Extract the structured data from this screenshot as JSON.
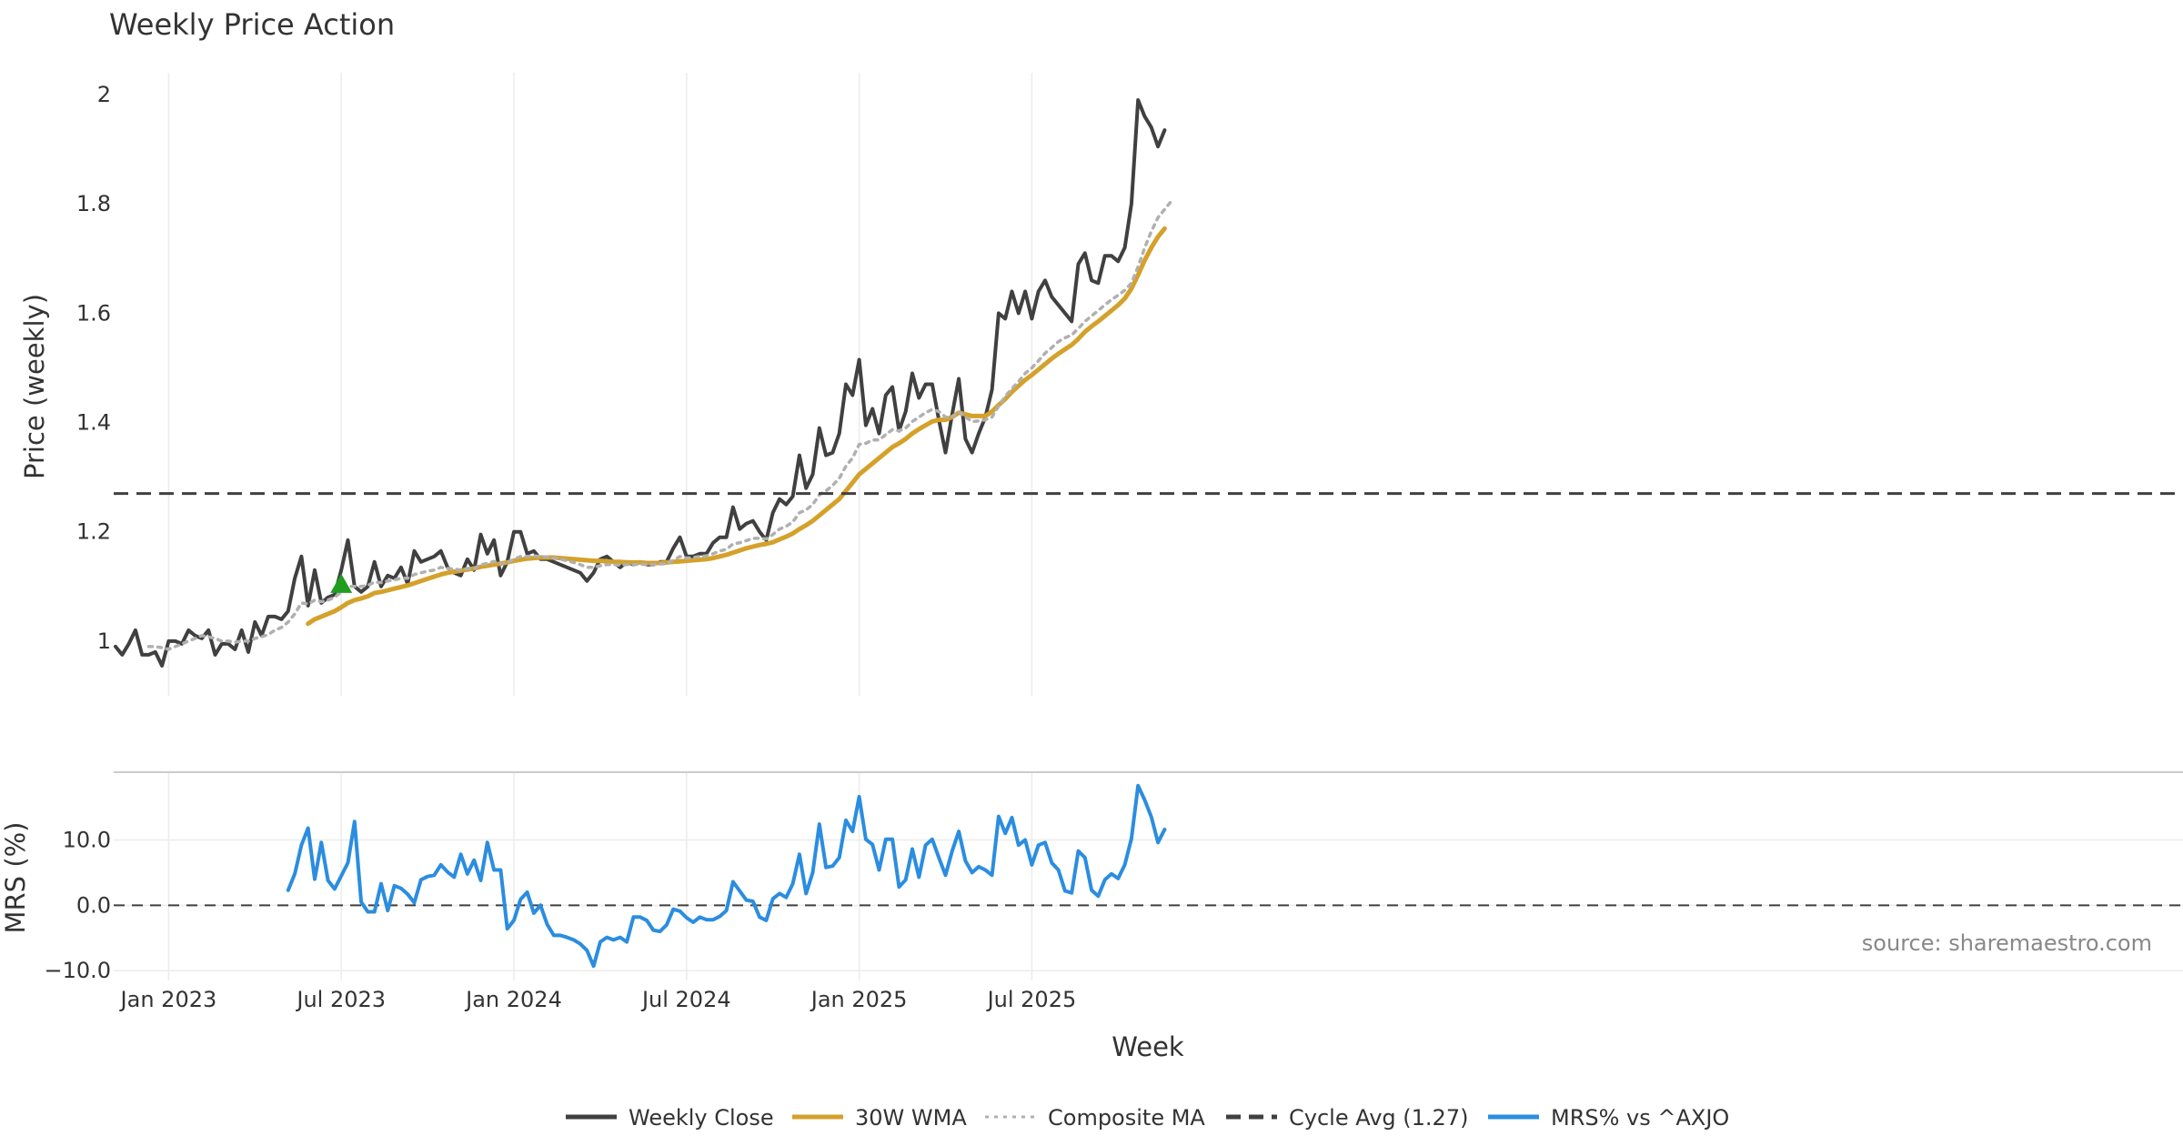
{
  "chart_data": [
    {
      "type": "line",
      "title": "Weekly Price Action",
      "ylabel": "Price (weekly)",
      "ylim": [
        0.9,
        2.04
      ],
      "yticks": [
        1,
        1.2,
        1.4,
        1.6,
        1.8,
        2
      ],
      "ytick_labels": [
        "1",
        "1.2",
        "1.4",
        "1.6",
        "1.8",
        "2"
      ],
      "grid": true,
      "x_start": "2022-11-07",
      "x_step_days": 7,
      "series": [
        {
          "name": "Weekly Close",
          "color": "#404040",
          "values": [
            0.99,
            0.975,
            0.995,
            1.02,
            0.975,
            0.975,
            0.98,
            0.955,
            1.0,
            1.0,
            0.995,
            1.02,
            1.01,
            1.005,
            1.02,
            0.975,
            0.995,
            0.995,
            0.985,
            1.02,
            0.98,
            1.035,
            1.01,
            1.045,
            1.045,
            1.04,
            1.055,
            1.115,
            1.155,
            1.065,
            1.13,
            1.07,
            1.08,
            1.085,
            1.13,
            1.185,
            1.1,
            1.09,
            1.1,
            1.145,
            1.1,
            1.12,
            1.115,
            1.135,
            1.105,
            1.165,
            1.145,
            1.15,
            1.155,
            1.165,
            1.135,
            1.125,
            1.12,
            1.15,
            1.13,
            1.195,
            1.16,
            1.185,
            1.12,
            1.145,
            1.2,
            1.2,
            1.16,
            1.165,
            1.15,
            1.15,
            1.145,
            1.14,
            1.135,
            1.13,
            1.125,
            1.11,
            1.125,
            1.15,
            1.155,
            1.145,
            1.135,
            1.145,
            1.14,
            1.145,
            1.14,
            1.14,
            1.145,
            1.145,
            1.17,
            1.19,
            1.155,
            1.155,
            1.16,
            1.16,
            1.18,
            1.19,
            1.19,
            1.245,
            1.205,
            1.215,
            1.22,
            1.2,
            1.185,
            1.235,
            1.26,
            1.25,
            1.265,
            1.34,
            1.28,
            1.305,
            1.39,
            1.34,
            1.345,
            1.38,
            1.47,
            1.45,
            1.515,
            1.395,
            1.425,
            1.38,
            1.45,
            1.465,
            1.385,
            1.42,
            1.49,
            1.445,
            1.47,
            1.47,
            1.405,
            1.345,
            1.415,
            1.48,
            1.37,
            1.345,
            1.38,
            1.41,
            1.46,
            1.6,
            1.59,
            1.64,
            1.6,
            1.64,
            1.59,
            1.64,
            1.66,
            1.63,
            1.615,
            1.6,
            1.585,
            1.69,
            1.71,
            1.66,
            1.655,
            1.705,
            1.705,
            1.695,
            1.72,
            1.8,
            1.99,
            1.96,
            1.94,
            1.905,
            1.935
          ]
        },
        {
          "name": "30W WMA",
          "color": "#d4a12a",
          "values": [
            null,
            null,
            null,
            null,
            null,
            null,
            null,
            null,
            null,
            null,
            null,
            null,
            null,
            null,
            null,
            null,
            null,
            null,
            null,
            null,
            null,
            null,
            null,
            null,
            null,
            null,
            null,
            null,
            null,
            1.032,
            1.04,
            1.045,
            1.05,
            1.055,
            1.062,
            1.07,
            1.075,
            1.078,
            1.082,
            1.088,
            1.09,
            1.093,
            1.096,
            1.099,
            1.102,
            1.106,
            1.11,
            1.114,
            1.118,
            1.122,
            1.125,
            1.127,
            1.129,
            1.131,
            1.133,
            1.136,
            1.138,
            1.14,
            1.142,
            1.144,
            1.147,
            1.149,
            1.151,
            1.152,
            1.153,
            1.153,
            1.153,
            1.152,
            1.151,
            1.15,
            1.149,
            1.148,
            1.147,
            1.147,
            1.146,
            1.145,
            1.145,
            1.144,
            1.144,
            1.144,
            1.143,
            1.143,
            1.143,
            1.144,
            1.145,
            1.146,
            1.147,
            1.148,
            1.149,
            1.15,
            1.152,
            1.155,
            1.158,
            1.162,
            1.166,
            1.17,
            1.173,
            1.176,
            1.178,
            1.181,
            1.186,
            1.191,
            1.197,
            1.205,
            1.212,
            1.22,
            1.23,
            1.24,
            1.25,
            1.26,
            1.275,
            1.29,
            1.305,
            1.315,
            1.325,
            1.335,
            1.345,
            1.355,
            1.362,
            1.37,
            1.38,
            1.388,
            1.395,
            1.402,
            1.405,
            1.405,
            1.41,
            1.418,
            1.415,
            1.412,
            1.412,
            1.412,
            1.42,
            1.432,
            1.443,
            1.456,
            1.467,
            1.478,
            1.487,
            1.497,
            1.507,
            1.517,
            1.526,
            1.534,
            1.542,
            1.553,
            1.566,
            1.576,
            1.585,
            1.595,
            1.605,
            1.615,
            1.627,
            1.645,
            1.67,
            1.697,
            1.72,
            1.74,
            1.755
          ]
        },
        {
          "name": "Composite MA",
          "color": "#b0b0b0",
          "values": [
            null,
            null,
            null,
            null,
            null,
            0.99,
            0.99,
            0.988,
            0.985,
            0.99,
            0.995,
            1.0,
            1.005,
            1.01,
            1.008,
            1.005,
            1.0,
            1.0,
            0.998,
            1.0,
            1.0,
            1.005,
            1.008,
            1.012,
            1.02,
            1.025,
            1.035,
            1.05,
            1.07,
            1.068,
            1.075,
            1.072,
            1.075,
            1.08,
            1.09,
            1.1,
            1.1,
            1.1,
            1.102,
            1.108,
            1.107,
            1.11,
            1.112,
            1.115,
            1.115,
            1.122,
            1.125,
            1.128,
            1.13,
            1.135,
            1.133,
            1.132,
            1.13,
            1.133,
            1.133,
            1.14,
            1.142,
            1.146,
            1.142,
            1.143,
            1.15,
            1.155,
            1.155,
            1.156,
            1.155,
            1.154,
            1.152,
            1.15,
            1.147,
            1.144,
            1.14,
            1.135,
            1.135,
            1.138,
            1.14,
            1.14,
            1.139,
            1.14,
            1.14,
            1.141,
            1.14,
            1.14,
            1.141,
            1.142,
            1.148,
            1.155,
            1.152,
            1.153,
            1.155,
            1.156,
            1.16,
            1.165,
            1.168,
            1.178,
            1.18,
            1.184,
            1.188,
            1.188,
            1.187,
            1.195,
            1.205,
            1.21,
            1.218,
            1.235,
            1.24,
            1.25,
            1.268,
            1.275,
            1.285,
            1.298,
            1.32,
            1.335,
            1.36,
            1.362,
            1.368,
            1.368,
            1.378,
            1.387,
            1.385,
            1.39,
            1.402,
            1.41,
            1.418,
            1.424,
            1.42,
            1.41,
            1.41,
            1.42,
            1.41,
            1.402,
            1.403,
            1.405,
            1.41,
            1.43,
            1.448,
            1.462,
            1.475,
            1.49,
            1.5,
            1.513,
            1.527,
            1.537,
            1.548,
            1.555,
            1.56,
            1.572,
            1.585,
            1.595,
            1.605,
            1.615,
            1.625,
            1.633,
            1.642,
            1.655,
            1.685,
            1.72,
            1.75,
            1.775,
            1.79,
            1.805
          ]
        },
        {
          "name": "Cycle Avg (1.27)",
          "color": "#404040",
          "value": 1.27,
          "style": "dashed"
        }
      ],
      "markers": [
        {
          "type": "triangle-up",
          "color": "#1f9d1f",
          "index": 34,
          "value": 1.105
        }
      ]
    },
    {
      "type": "line",
      "ylabel": "MRS (%)",
      "ylim": [
        -11.5,
        20.5
      ],
      "yticks": [
        -10,
        0,
        10
      ],
      "ytick_labels": [
        "−10.0",
        "0.0",
        "10.0"
      ],
      "grid": true,
      "xlabel": "Week",
      "x_tick_labels": [
        "Jan 2023",
        "Jul 2023",
        "Jan 2024",
        "Jul 2024",
        "Jan 2025",
        "Jul 2025"
      ],
      "x_tick_dates": [
        "2023-01-02",
        "2023-07-03",
        "2024-01-01",
        "2024-07-01",
        "2024-12-30",
        "2025-06-30"
      ],
      "zero_line": 0,
      "annotation": "source: sharemaestro.com",
      "series": [
        {
          "name": "MRS% vs ^AXJO",
          "color": "#2b8de0",
          "values": [
            null,
            null,
            null,
            null,
            null,
            null,
            null,
            null,
            null,
            null,
            null,
            null,
            null,
            null,
            null,
            null,
            null,
            null,
            null,
            null,
            null,
            null,
            null,
            null,
            null,
            null,
            2.3,
            4.8,
            9.2,
            11.8,
            4.0,
            9.6,
            3.8,
            2.5,
            4.5,
            6.5,
            12.8,
            0.5,
            -1.0,
            -1.0,
            3.3,
            -0.8,
            3.0,
            2.6,
            1.7,
            0.4,
            3.9,
            4.4,
            4.6,
            6.2,
            5.1,
            4.3,
            7.8,
            4.8,
            6.9,
            3.8,
            9.6,
            5.4,
            5.4,
            -3.6,
            -2.3,
            0.9,
            2.0,
            -1.2,
            0.0,
            -2.9,
            -4.6,
            -4.6,
            -4.9,
            -5.3,
            -5.9,
            -6.9,
            -9.3,
            -5.6,
            -4.9,
            -5.3,
            -4.9,
            -5.6,
            -1.8,
            -1.8,
            -2.3,
            -3.8,
            -4.0,
            -3.0,
            -0.6,
            -0.9,
            -1.9,
            -2.6,
            -1.8,
            -2.2,
            -2.2,
            -1.7,
            -0.8,
            3.6,
            2.2,
            0.8,
            0.6,
            -1.8,
            -2.3,
            1.0,
            1.8,
            1.2,
            3.3,
            7.8,
            1.8,
            5.0,
            12.4,
            5.8,
            6.0,
            7.3,
            13.0,
            11.3,
            16.6,
            10.1,
            9.3,
            5.4,
            10.1,
            10.1,
            2.8,
            3.9,
            8.6,
            4.3,
            9.2,
            10.1,
            7.3,
            4.6,
            8.3,
            11.3,
            6.8,
            5.0,
            5.9,
            5.4,
            4.6,
            13.6,
            11.0,
            13.4,
            9.2,
            10.0,
            6.2,
            9.2,
            9.6,
            6.5,
            5.4,
            2.2,
            1.9,
            8.3,
            7.3,
            2.3,
            1.4,
            3.9,
            4.8,
            4.1,
            6.2,
            10.2,
            18.3,
            16.1,
            13.5,
            9.6,
            11.6
          ]
        }
      ]
    }
  ],
  "legend": {
    "placement": "bottom-center",
    "items": [
      {
        "label": "Weekly Close",
        "color": "#404040",
        "style": "solid"
      },
      {
        "label": "30W WMA",
        "color": "#d4a12a",
        "style": "solid"
      },
      {
        "label": "Composite MA",
        "color": "#b0b0b0",
        "style": "dotted"
      },
      {
        "label": "Cycle Avg (1.27)",
        "color": "#404040",
        "style": "dashed"
      },
      {
        "label": "MRS% vs ^AXJO",
        "color": "#2b8de0",
        "style": "solid"
      }
    ]
  }
}
